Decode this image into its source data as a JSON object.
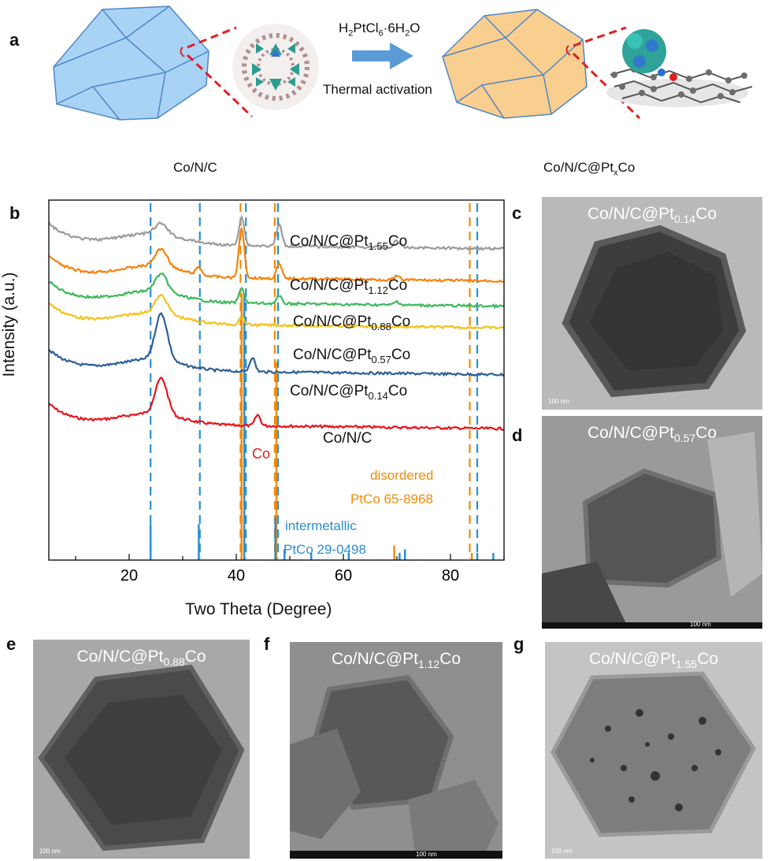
{
  "panel_labels": {
    "a": "a",
    "b": "b",
    "c": "c",
    "d": "d",
    "e": "e",
    "f": "f",
    "g": "g"
  },
  "scheme": {
    "reagent": "H2PtCl6·6H2O",
    "reagent_parts": {
      "h": "H",
      "h_sub": "2",
      "ptcl": "PtCl",
      "cl_sub": "6",
      "mid": "·6H",
      "h2o_sub": "2",
      "o": "O"
    },
    "process": "Thermal activation",
    "left_caption": "Co/N/C",
    "right_caption_main": "Co/N/C@Pt",
    "right_caption_sub": "x",
    "right_caption_end": "Co",
    "colors": {
      "left_crystal": "#a9d3f5",
      "right_crystal": "#f9cf8f",
      "arrow": "#5b9bd5",
      "dash": "#e02020"
    }
  },
  "xrd": {
    "ylabel": "Intensity (a.u.)",
    "xlabel": "Two Theta (Degree)",
    "co_label": "Co",
    "ref_disordered_1": "disordered",
    "ref_disordered_2": "PtCo 65-8968",
    "ref_intermetallic_1": "intermetallic",
    "ref_intermetallic_2": "PtCo 29-0498",
    "colors": {
      "orange": "#f08a0a",
      "blue": "#2b8fd0",
      "co_red": "#e02020"
    }
  },
  "tem": {
    "c": {
      "pre": "Co/N/C@Pt",
      "sub": "0.14",
      "post": "Co",
      "scale": "100 nm"
    },
    "d": {
      "pre": "Co/N/C@Pt",
      "sub": "0.57",
      "post": "Co",
      "scale": "100 nm"
    },
    "e": {
      "pre": "Co/N/C@Pt",
      "sub": "0.88",
      "post": "Co",
      "scale": "100 nm"
    },
    "f": {
      "pre": "Co/N/C@Pt",
      "sub": "1.12",
      "post": "Co",
      "scale": "100 nm"
    },
    "g": {
      "pre": "Co/N/C@Pt",
      "sub": "1.55",
      "post": "Co",
      "scale": "100 nm"
    }
  },
  "chart_data": {
    "type": "line",
    "title": "",
    "xlabel": "Two Theta (Degree)",
    "ylabel": "Intensity (a.u.)",
    "xlim": [
      5,
      90
    ],
    "xticks": [
      20,
      40,
      60,
      80
    ],
    "series": [
      {
        "name": "Co/N/C",
        "name_pre": "Co/N/C",
        "name_sub": "",
        "name_post": "",
        "color": "#e8141c",
        "baseline": 0.62,
        "peaks": [
          [
            26,
            0.1
          ],
          [
            44,
            0.03
          ]
        ]
      },
      {
        "name": "Co/N/C@Pt0.14Co",
        "name_pre": "Co/N/C@Pt",
        "name_sub": "0.14",
        "name_post": "Co",
        "color": "#2d5f96",
        "baseline": 0.47,
        "peaks": [
          [
            26,
            0.13
          ],
          [
            43,
            0.04
          ]
        ]
      },
      {
        "name": "Co/N/C@Pt0.57Co",
        "name_pre": "Co/N/C@Pt",
        "name_sub": "0.57",
        "name_post": "Co",
        "color": "#f3c31b",
        "baseline": 0.34,
        "peaks": [
          [
            26,
            0.05
          ],
          [
            41,
            0.02
          ]
        ]
      },
      {
        "name": "Co/N/C@Pt0.88Co",
        "name_pre": "Co/N/C@Pt",
        "name_sub": "0.88",
        "name_post": "Co",
        "color": "#3cb95a",
        "baseline": 0.28,
        "peaks": [
          [
            26,
            0.05
          ],
          [
            41,
            0.04
          ],
          [
            48,
            0.02
          ],
          [
            70,
            0.01
          ]
        ]
      },
      {
        "name": "Co/N/C@Pt1.12Co",
        "name_pre": "Co/N/C@Pt",
        "name_sub": "1.12",
        "name_post": "Co",
        "color": "#f7820c",
        "baseline": 0.21,
        "peaks": [
          [
            26,
            0.05
          ],
          [
            33,
            0.02
          ],
          [
            41,
            0.14
          ],
          [
            48,
            0.04
          ],
          [
            70,
            0.01
          ]
        ]
      },
      {
        "name": "Co/N/C@Pt1.55Co",
        "name_pre": "Co/N/C@Pt",
        "name_sub": "1.55",
        "name_post": "Co",
        "color": "#9b9b9b",
        "baseline": 0.12,
        "peaks": [
          [
            26,
            0.03
          ],
          [
            41,
            0.08
          ],
          [
            48,
            0.06
          ],
          [
            70,
            0.02
          ]
        ]
      }
    ],
    "reference_disordered_PtCo": [
      41,
      47.5,
      69.5,
      84
    ],
    "reference_intermetallic_PtCo": [
      24,
      33,
      41.5,
      47.3,
      49,
      54,
      61,
      70.5,
      71.5,
      85,
      88
    ],
    "dashed_lines_blue": [
      24,
      33.2,
      41.8,
      47.8,
      85
    ],
    "dashed_lines_orange": [
      40.8,
      47.2,
      83.6
    ]
  }
}
